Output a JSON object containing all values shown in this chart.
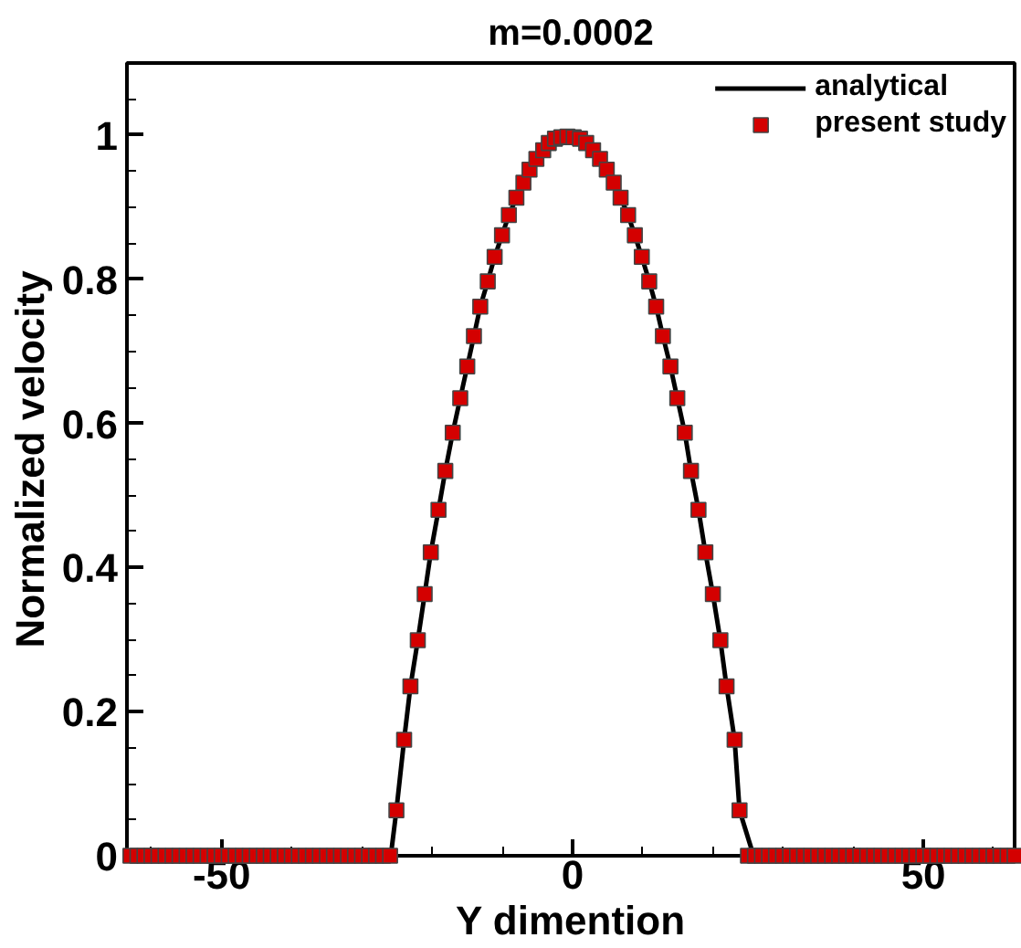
{
  "chart_data": {
    "type": "scatter",
    "title": "m=0.0002",
    "xlabel": "Y dimention",
    "ylabel": "Normalized velocity",
    "xlim": [
      -63.5,
      63
    ],
    "ylim": [
      0,
      1.1
    ],
    "xticks": [
      -50,
      0,
      50,
      {
        "value": -60,
        "label": null
      },
      {
        "value": -40,
        "label": null
      },
      {
        "value": -30,
        "label": null
      },
      {
        "value": -20,
        "label": null
      },
      {
        "value": -10,
        "label": null
      },
      {
        "value": 10,
        "label": null
      },
      {
        "value": 20,
        "label": null
      },
      {
        "value": 30,
        "label": null
      },
      {
        "value": 40,
        "label": null
      },
      {
        "value": 60,
        "label": null
      }
    ],
    "yticks": [
      0,
      0.2,
      0.4,
      0.6,
      0.8,
      1,
      {
        "value": 0.1,
        "label": null
      },
      {
        "value": 0.3,
        "label": null
      },
      {
        "value": 0.5,
        "label": null
      },
      {
        "value": 0.7,
        "label": null
      },
      {
        "value": 0.9,
        "label": null
      },
      {
        "value": 0.05,
        "label": null
      },
      {
        "value": 0.15,
        "label": null
      },
      {
        "value": 0.25,
        "label": null
      },
      {
        "value": 0.35,
        "label": null
      },
      {
        "value": 0.45,
        "label": null
      },
      {
        "value": 0.55,
        "label": null
      },
      {
        "value": 0.65,
        "label": null
      },
      {
        "value": 0.75,
        "label": null
      },
      {
        "value": 0.85,
        "label": null
      },
      {
        "value": 0.95,
        "label": null
      },
      {
        "value": 1.05,
        "label": null
      }
    ],
    "grid": false,
    "legend": "top right",
    "series": [
      {
        "name": "analytical",
        "type": "line",
        "color": "#000000",
        "line_style": "solid",
        "marker": "none",
        "x": [
          -63.5,
          -25.9,
          -25.1,
          -24.0,
          -23.1,
          -22.05,
          -21.07,
          -20.2,
          -19.1,
          -18.13,
          -17.07,
          -16.0,
          -15.0,
          -14.05,
          -13.15,
          -12.08,
          -11.1,
          -10.05,
          -9.07,
          -8.0,
          -7.0,
          -6.13,
          -5.15,
          -4.18,
          -3.38,
          -2.5,
          -1.6,
          -0.72,
          0.17,
          1.07,
          1.95,
          2.93,
          3.92,
          4.88,
          5.87,
          6.85,
          7.92,
          8.88,
          9.87,
          10.93,
          11.92,
          12.88,
          13.95,
          14.93,
          16.0,
          16.88,
          17.95,
          18.93,
          20.0,
          21.07,
          21.95,
          23.1,
          23.8,
          25.8,
          63
        ],
        "values": [
          0,
          0,
          0.063,
          0.161,
          0.235,
          0.299,
          0.363,
          0.421,
          0.48,
          0.534,
          0.587,
          0.635,
          0.679,
          0.721,
          0.762,
          0.797,
          0.831,
          0.861,
          0.889,
          0.913,
          0.934,
          0.952,
          0.967,
          0.979,
          0.989,
          0.995,
          0.997,
          0.998,
          0.997,
          0.995,
          0.989,
          0.979,
          0.967,
          0.952,
          0.934,
          0.913,
          0.889,
          0.861,
          0.831,
          0.797,
          0.762,
          0.721,
          0.679,
          0.635,
          0.587,
          0.534,
          0.48,
          0.421,
          0.363,
          0.299,
          0.235,
          0.161,
          0.063,
          0,
          0
        ]
      },
      {
        "name": "present study",
        "color": "#d40000",
        "marker": "square",
        "x": [
          -63,
          -62,
          -61,
          -60,
          -59,
          -58,
          -57,
          -56,
          -55,
          -54,
          -53,
          -52,
          -51,
          -50,
          -49,
          -48,
          -47,
          -46,
          -45,
          -44,
          -43,
          -42,
          -41,
          -40,
          -39,
          -38,
          -37,
          -36,
          -35,
          -34,
          -33,
          -32,
          -31,
          -30,
          -29,
          -28,
          -27,
          -26,
          -25.1,
          -24.0,
          -23.1,
          -22.05,
          -21.07,
          -20.2,
          -19.1,
          -18.13,
          -17.07,
          -16.0,
          -15.0,
          -14.05,
          -13.15,
          -12.08,
          -11.1,
          -10.05,
          -9.07,
          -8.0,
          -7.0,
          -6.13,
          -5.15,
          -4.18,
          -3.38,
          -2.5,
          -1.6,
          -0.72,
          0.17,
          1.07,
          1.95,
          2.93,
          3.92,
          4.88,
          5.87,
          6.85,
          7.92,
          8.88,
          9.87,
          10.93,
          11.92,
          12.88,
          13.95,
          14.93,
          16.0,
          16.88,
          17.95,
          18.93,
          20.0,
          21.07,
          21.95,
          23.1,
          23.8,
          25,
          26,
          27,
          28,
          29,
          30,
          31,
          32,
          33,
          34,
          35,
          36,
          37,
          38,
          39,
          40,
          41,
          42,
          43,
          44,
          45,
          46,
          47,
          48,
          49,
          50,
          51,
          52,
          53,
          54,
          55,
          56,
          57,
          58,
          59,
          60,
          61,
          62,
          63
        ],
        "values": [
          0,
          0,
          0,
          0,
          0,
          0,
          0,
          0,
          0,
          0,
          0,
          0,
          0,
          0,
          0,
          0,
          0,
          0,
          0,
          0,
          0,
          0,
          0,
          0,
          0,
          0,
          0,
          0,
          0,
          0,
          0,
          0,
          0,
          0,
          0,
          0,
          0,
          0,
          0.063,
          0.161,
          0.235,
          0.299,
          0.363,
          0.421,
          0.48,
          0.534,
          0.587,
          0.635,
          0.679,
          0.721,
          0.762,
          0.797,
          0.831,
          0.861,
          0.889,
          0.913,
          0.934,
          0.952,
          0.967,
          0.979,
          0.989,
          0.995,
          0.997,
          0.998,
          0.997,
          0.995,
          0.989,
          0.979,
          0.967,
          0.952,
          0.934,
          0.913,
          0.889,
          0.861,
          0.831,
          0.797,
          0.762,
          0.721,
          0.679,
          0.635,
          0.587,
          0.534,
          0.48,
          0.421,
          0.363,
          0.299,
          0.235,
          0.161,
          0.063,
          0,
          0,
          0,
          0,
          0,
          0,
          0,
          0,
          0,
          0,
          0,
          0,
          0,
          0,
          0,
          0,
          0,
          0,
          0,
          0,
          0,
          0,
          0,
          0,
          0,
          0,
          0,
          0,
          0,
          0,
          0,
          0,
          0,
          0,
          0,
          0,
          0,
          0,
          0
        ]
      }
    ]
  }
}
